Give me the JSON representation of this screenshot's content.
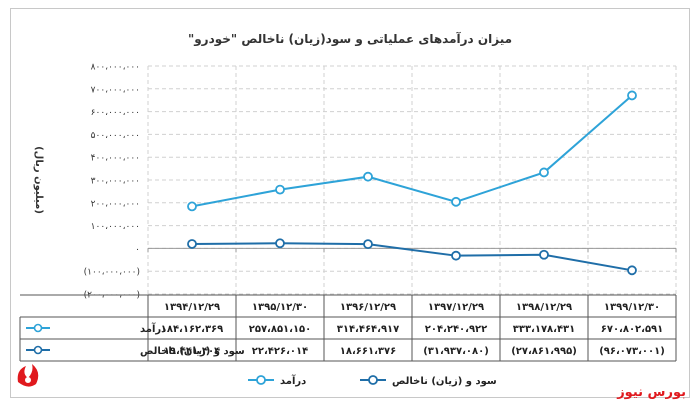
{
  "chart_data": {
    "type": "line",
    "title": "میزان درآمدهای عملیاتی و سود(زیان) ناخالص \"خودرو\"",
    "ylabel": "(میلیون ریال)",
    "xlabel": "",
    "ylim": [
      -200000000,
      800000000
    ],
    "y_ticks": [
      800000000,
      700000000,
      600000000,
      500000000,
      400000000,
      300000000,
      200000000,
      100000000,
      0,
      -100000000,
      -200000000
    ],
    "y_tick_labels": [
      "۸۰۰،۰۰۰،۰۰۰",
      "۷۰۰،۰۰۰،۰۰۰",
      "۶۰۰،۰۰۰،۰۰۰",
      "۵۰۰،۰۰۰،۰۰۰",
      "۴۰۰،۰۰۰،۰۰۰",
      "۳۰۰،۰۰۰،۰۰۰",
      "۲۰۰،۰۰۰،۰۰۰",
      "۱۰۰،۰۰۰،۰۰۰",
      "۰",
      "(۱۰۰،۰۰۰،۰۰۰)",
      "(۲۰۰،۰۰۰،۰۰۰)"
    ],
    "grid": true,
    "legend_position": "bottom",
    "categories": [
      "۱۳۹۴/۱۲/۲۹",
      "۱۳۹۵/۱۲/۳۰",
      "۱۳۹۶/۱۲/۲۹",
      "۱۳۹۷/۱۲/۲۹",
      "۱۳۹۸/۱۲/۲۹",
      "۱۳۹۹/۱۲/۳۰"
    ],
    "series": [
      {
        "name": "درآمد",
        "color": "#2ea3d8",
        "values": [
          184162369,
          257851150,
          314464917,
          204240922,
          333178431,
          670802591
        ],
        "value_labels": [
          "۱۸۴،۱۶۲،۳۶۹",
          "۲۵۷،۸۵۱،۱۵۰",
          "۳۱۴،۴۶۴،۹۱۷",
          "۲۰۴،۲۴۰،۹۲۲",
          "۳۳۳،۱۷۸،۴۳۱",
          "۶۷۰،۸۰۲،۵۹۱"
        ]
      },
      {
        "name": "سود و (زیان) ناخالص",
        "color": "#1f6ea8",
        "values": [
          19441404,
          22426014,
          18661376,
          -31937080,
          -27861995,
          -96073001
        ],
        "value_labels": [
          "۱۹،۴۴۱،۴۰۴",
          "۲۲،۴۲۶،۰۱۴",
          "۱۸،۶۶۱،۳۷۶",
          "(۳۱،۹۳۷،۰۸۰)",
          "(۲۷،۸۶۱،۹۹۵)",
          "(۹۶،۰۷۳،۰۰۱)"
        ]
      }
    ]
  },
  "brand": {
    "name": "بورس نیوز"
  }
}
